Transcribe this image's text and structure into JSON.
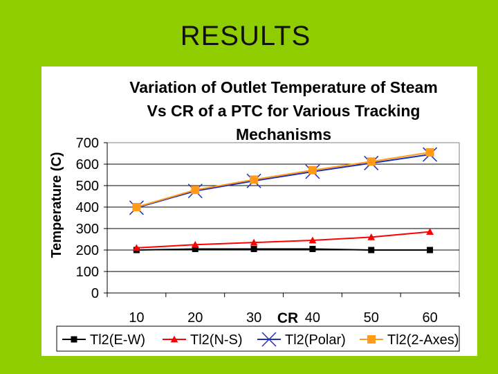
{
  "slide": {
    "title": "RESULTS"
  },
  "chart_data": {
    "type": "line",
    "title_lines": [
      "Variation of Outlet Temperature of Steam",
      "Vs CR of a PTC for Various Tracking",
      "Mechanisms"
    ],
    "xlabel": "CR",
    "ylabel": "Temperature (C)",
    "categories": [
      "10",
      "20",
      "30",
      "40",
      "50",
      "60"
    ],
    "y_ticks": [
      "0",
      "100",
      "200",
      "300",
      "400",
      "500",
      "600",
      "700"
    ],
    "ylim": [
      0,
      700
    ],
    "grid": "horizontal",
    "legend_position": "bottom",
    "series": [
      {
        "name": "Tl2(E-W)",
        "marker": "square",
        "color": "#000000",
        "values": [
          200,
          205,
          205,
          205,
          200,
          200
        ]
      },
      {
        "name": "Tl2(N-S)",
        "marker": "triangle",
        "color": "#ff0000",
        "values": [
          210,
          225,
          235,
          245,
          260,
          285
        ]
      },
      {
        "name": "Tl2(Polar)",
        "marker": "x",
        "color": "#1f2fb5",
        "values": [
          397,
          475,
          522,
          565,
          605,
          645
        ]
      },
      {
        "name": "Tl2(2-Axes)",
        "marker": "square",
        "color": "#ff9a1a",
        "values": [
          400,
          480,
          528,
          572,
          612,
          655
        ]
      }
    ]
  }
}
